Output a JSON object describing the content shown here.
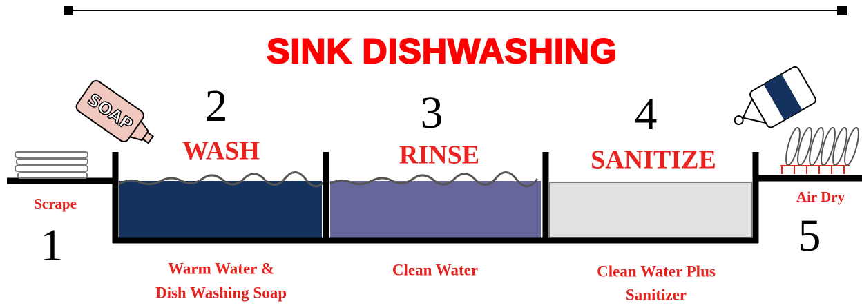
{
  "title": "SINK DISHWASHING",
  "soap_label": "SOAP",
  "steps": [
    {
      "number": "1",
      "label": "Scrape"
    },
    {
      "number": "2",
      "label": "WASH",
      "description": [
        "Warm Water &",
        "Dish Washing Soap"
      ]
    },
    {
      "number": "3",
      "label": "RINSE",
      "description": [
        "Clean Water"
      ]
    },
    {
      "number": "4",
      "label": "SANITIZE",
      "description": [
        "Clean Water Plus",
        "Sanitizer"
      ]
    },
    {
      "number": "5",
      "label": "Air Dry"
    }
  ]
}
